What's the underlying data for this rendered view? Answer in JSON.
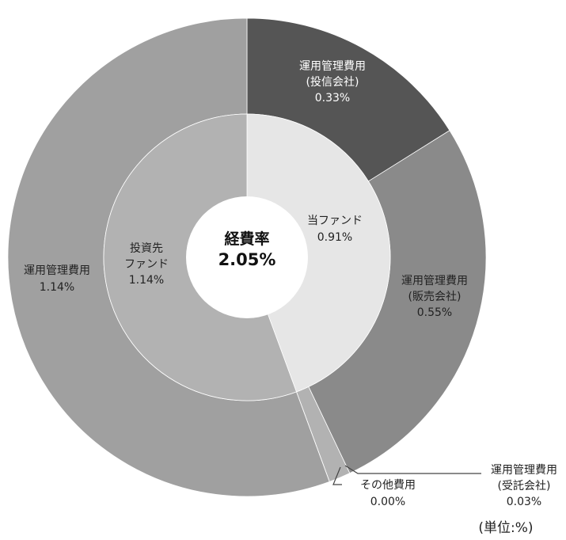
{
  "chart_data": {
    "type": "pie",
    "variant": "nested-donut",
    "center": {
      "title": "経費率",
      "value": "2.05%"
    },
    "unit_note": "(単位:%)",
    "inner_ring": [
      {
        "name_lines": [
          "当ファンド"
        ],
        "value": 0.91,
        "value_label": "0.91%",
        "color": "#e6e6e6"
      },
      {
        "name_lines": [
          "投資先",
          "ファンド"
        ],
        "value": 1.14,
        "value_label": "1.14%",
        "color": "#b2b2b2"
      }
    ],
    "outer_ring": [
      {
        "name_lines": [
          "運用管理費用",
          "(投信会社)"
        ],
        "value": 0.33,
        "value_label": "0.33%",
        "color": "#555555"
      },
      {
        "name_lines": [
          "運用管理費用",
          "(販売会社)"
        ],
        "value": 0.55,
        "value_label": "0.55%",
        "color": "#8a8a8a"
      },
      {
        "name_lines": [
          "運用管理費用",
          "(受託会社)"
        ],
        "value": 0.03,
        "value_label": "0.03%",
        "color": "#b2b2b2"
      },
      {
        "name_lines": [
          "その他費用"
        ],
        "value": 0.0,
        "value_label": "0.00%",
        "color": "#ffffff"
      },
      {
        "name_lines": [
          "運用管理費用"
        ],
        "value": 1.14,
        "value_label": "1.14%",
        "color": "#a0a0a0"
      }
    ]
  }
}
